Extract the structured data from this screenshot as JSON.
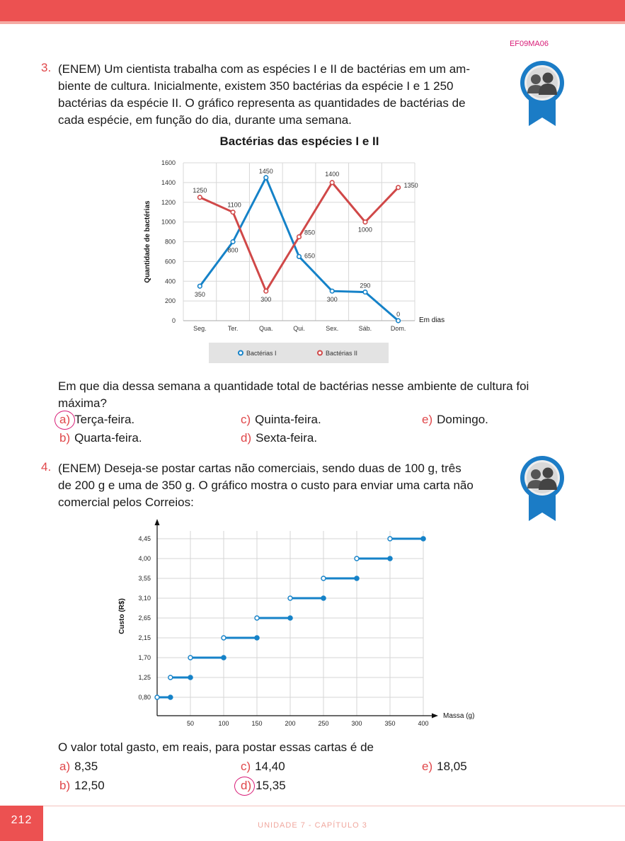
{
  "header": {
    "code": "EF09MA06"
  },
  "q3": {
    "number": "3.",
    "stem_line1": "(ENEM) Um cientista trabalha com as espécies I e II de bactérias em um am-",
    "stem_line2": "biente de cultura. Inicialmente, existem 350 bactérias da espécie I e 1 250",
    "stem_line3": "bactérias da espécie II. O gráfico representa as quantidades de bactérias de",
    "stem_line4": "cada espécie, em função do dia, durante uma semana.",
    "question_line1": "Em que dia dessa semana a quantidade total de bactérias nesse ambiente de cultura foi",
    "question_line2": "máxima?",
    "options": [
      {
        "letter": "a)",
        "text": "Terça-feira."
      },
      {
        "letter": "b)",
        "text": "Quarta-feira."
      },
      {
        "letter": "c)",
        "text": "Quinta-feira."
      },
      {
        "letter": "d)",
        "text": "Sexta-feira."
      },
      {
        "letter": "e)",
        "text": "Domingo."
      }
    ]
  },
  "q4": {
    "number": "4.",
    "stem_line1": "(ENEM) Deseja-se postar cartas não comerciais, sendo duas de 100 g, três",
    "stem_line2": "de 200 g e uma de 350 g. O gráfico mostra o custo para enviar uma carta não",
    "stem_line3": "comercial pelos Correios:",
    "question": "O valor total gasto, em reais, para postar essas cartas é de",
    "options": [
      {
        "letter": "a)",
        "text": "8,35"
      },
      {
        "letter": "b)",
        "text": "12,50"
      },
      {
        "letter": "c)",
        "text": "14,40"
      },
      {
        "letter": "d)",
        "text": "15,35"
      },
      {
        "letter": "e)",
        "text": "18,05"
      }
    ]
  },
  "chart_data": [
    {
      "type": "line",
      "title": "Bactérias das espécies I e II",
      "ylabel": "Quantidade de bactérias",
      "xlabel": "Em dias",
      "categories": [
        "Seg.",
        "Ter.",
        "Qua.",
        "Qui.",
        "Sex.",
        "Sáb.",
        "Dom."
      ],
      "ylim": [
        0,
        1600
      ],
      "yticks": [
        0,
        200,
        400,
        600,
        800,
        1000,
        1200,
        1400,
        1600
      ],
      "grid": true,
      "legend_position": "bottom",
      "series": [
        {
          "name": "Bactérias I",
          "color": "#1582c8",
          "values": [
            350,
            800,
            1450,
            650,
            300,
            290,
            0
          ],
          "labels": [
            "350",
            "800",
            "1450",
            "650",
            "300",
            "290",
            "0"
          ]
        },
        {
          "name": "Bactérias II",
          "color": "#d04848",
          "values": [
            1250,
            1100,
            300,
            850,
            1400,
            1000,
            1350
          ],
          "labels": [
            "1250",
            "1100",
            "300",
            "850",
            "1400",
            "1000",
            "1350"
          ]
        }
      ]
    },
    {
      "type": "step",
      "xlabel": "Massa (g)",
      "ylabel": "Custo (R$)",
      "xlim": [
        0,
        400
      ],
      "xticks": [
        50,
        100,
        150,
        200,
        250,
        300,
        350,
        400
      ],
      "ytick_labels": [
        "0,80",
        "1,25",
        "1,70",
        "2,15",
        "2,65",
        "3,10",
        "3,55",
        "4,00",
        "4,45"
      ],
      "color": "#1582c8",
      "grid": true,
      "steps": [
        {
          "from": 0,
          "to": 20,
          "cost": "0,80"
        },
        {
          "from": 20,
          "to": 50,
          "cost": "1,25"
        },
        {
          "from": 50,
          "to": 100,
          "cost": "1,70"
        },
        {
          "from": 100,
          "to": 150,
          "cost": "2,15"
        },
        {
          "from": 150,
          "to": 200,
          "cost": "2,65"
        },
        {
          "from": 200,
          "to": 250,
          "cost": "3,10"
        },
        {
          "from": 250,
          "to": 300,
          "cost": "3,55"
        },
        {
          "from": 300,
          "to": 350,
          "cost": "4,00"
        },
        {
          "from": 350,
          "to": 400,
          "cost": "4,45"
        }
      ]
    }
  ],
  "footer": {
    "page": "212",
    "text": "UNIDADE 7  -  CAPÍTULO 3"
  }
}
